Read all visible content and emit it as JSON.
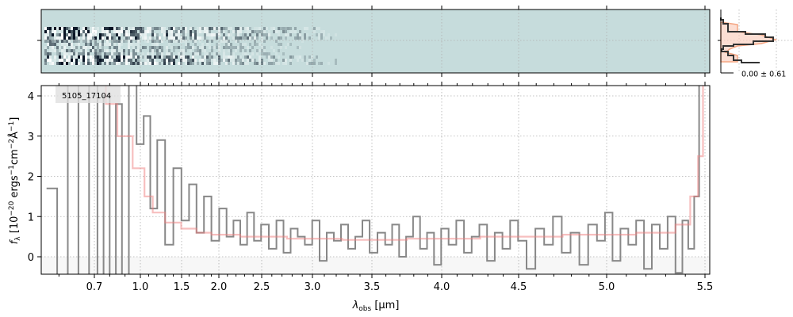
{
  "chart_data": [
    {
      "type": "image",
      "panel": "2d-spectrum",
      "colormap_colors": {
        "background": "#c6dcdc",
        "dark": "#0a1424",
        "light": "#ffffff"
      }
    },
    {
      "type": "histogram",
      "panel": "residual-histogram",
      "annotation": "0.00 ± 0.61",
      "colors": {
        "line": "#333333",
        "model": "#f4a582"
      }
    },
    {
      "type": "line",
      "panel": "1d-spectrum",
      "label": "5105_17104",
      "xlabel": "λobs [µm]",
      "xlabel_main": "λ",
      "xlabel_sub": "obs",
      "xlabel_unit": " [µm]",
      "ylabel": "fλ [10^-20 ergs^-1 cm^-2 Å^-1]",
      "xlim": [
        0.55,
        5.52
      ],
      "ylim": [
        -0.45,
        4.25
      ],
      "grid": true,
      "xticks": [
        0.7,
        1.0,
        1.5,
        2.0,
        2.5,
        3.0,
        3.5,
        4.0,
        4.5,
        5.0,
        5.5
      ],
      "xtick_labels": [
        "0.7",
        "1.0",
        "1.5",
        "2.0",
        "2.5",
        "3.0",
        "3.5",
        "4.0",
        "4.5",
        "5.0",
        "5.5"
      ],
      "yticks": [
        0,
        1,
        2,
        3,
        4
      ],
      "ytick_labels": [
        "0",
        "1",
        "2",
        "3",
        "4"
      ],
      "series": [
        {
          "name": "data",
          "color": "#888888",
          "x": [
            0.58,
            0.61,
            0.64,
            0.67,
            0.7,
            0.74,
            0.78,
            0.82,
            0.86,
            0.9,
            0.95,
            1.0,
            1.08,
            1.16,
            1.25,
            1.35,
            1.45,
            1.55,
            1.65,
            1.75,
            1.85,
            1.95,
            2.05,
            2.13,
            2.21,
            2.29,
            2.37,
            2.45,
            2.53,
            2.61,
            2.68,
            2.75,
            2.82,
            2.89,
            2.96,
            3.03,
            3.09,
            3.15,
            3.21,
            3.27,
            3.33,
            3.39,
            3.45,
            3.51,
            3.57,
            3.62,
            3.67,
            3.72,
            3.77,
            3.82,
            3.87,
            3.92,
            3.97,
            4.02,
            4.07,
            4.12,
            4.17,
            4.22,
            4.27,
            4.32,
            4.37,
            4.42,
            4.47,
            4.52,
            4.57,
            4.62,
            4.67,
            4.72,
            4.77,
            4.82,
            4.87,
            4.92,
            4.97,
            5.01,
            5.05,
            5.09,
            5.13,
            5.17,
            5.21,
            5.25,
            5.29,
            5.33,
            5.37,
            5.4,
            5.43,
            5.46,
            5.48,
            5.5
          ],
          "y": [
            1.7,
            -2,
            5,
            -3,
            4.5,
            -2,
            4,
            -1.5,
            3.8,
            -0.5,
            5,
            2.8,
            3.5,
            1.2,
            2.9,
            0.3,
            2.2,
            0.9,
            1.8,
            0.6,
            1.5,
            0.4,
            1.2,
            0.5,
            0.9,
            0.3,
            1.1,
            0.4,
            0.8,
            0.2,
            0.9,
            0.1,
            0.7,
            0.5,
            0.3,
            0.9,
            -0.1,
            0.6,
            0.4,
            0.8,
            0.2,
            0.5,
            0.9,
            0.1,
            0.6,
            0.3,
            0.8,
            0.0,
            0.5,
            1.0,
            0.2,
            0.6,
            -0.2,
            0.7,
            0.3,
            0.9,
            0.1,
            0.5,
            0.8,
            -0.1,
            0.6,
            0.2,
            0.9,
            0.4,
            -0.3,
            0.7,
            0.3,
            1.0,
            0.1,
            0.6,
            -0.2,
            0.8,
            0.4,
            1.1,
            -0.1,
            0.7,
            0.3,
            0.9,
            -0.3,
            0.8,
            0.2,
            1.0,
            -0.4,
            0.9,
            0.2,
            1.5,
            4.5,
            5.0
          ]
        },
        {
          "name": "model",
          "color": "#f08080",
          "x": [
            0.75,
            0.8,
            0.9,
            1.0,
            1.1,
            1.2,
            1.4,
            1.6,
            1.8,
            2.0,
            2.5,
            3.0,
            3.5,
            4.0,
            4.5,
            5.0,
            5.3,
            5.4,
            5.45,
            5.48,
            5.5
          ],
          "y": [
            4.3,
            3.8,
            3.0,
            2.2,
            1.5,
            1.1,
            0.85,
            0.7,
            0.6,
            0.55,
            0.5,
            0.45,
            0.42,
            0.45,
            0.5,
            0.55,
            0.6,
            0.8,
            1.5,
            2.5,
            4.3
          ]
        }
      ]
    }
  ]
}
